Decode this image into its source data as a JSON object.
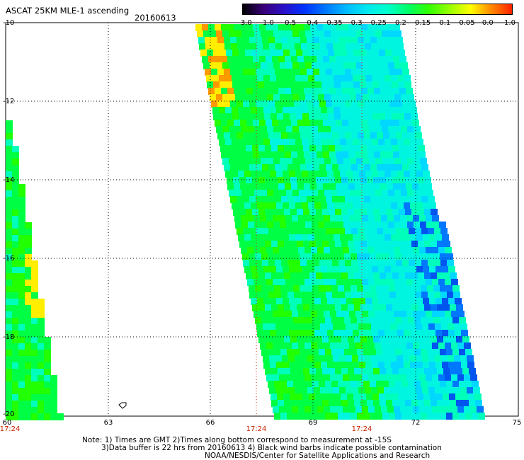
{
  "title": "ASCAT 25KM MLE-1 ascending",
  "date": "20160613",
  "colorbar": {
    "labels": [
      "-3.0",
      "-1.0",
      "-0.5",
      "-0.4",
      "-0.35",
      "-0.3",
      "-0.25",
      "-0.2",
      "-0.15",
      "-0.1",
      "-0.05",
      "0.0",
      "1.0"
    ],
    "colors": [
      "#000000",
      "#3a007a",
      "#2a10c8",
      "#0033ff",
      "#0077ff",
      "#00bbff",
      "#00e8f0",
      "#00ffcc",
      "#00ff66",
      "#33ff00",
      "#99ff00",
      "#ffff00",
      "#ff8800",
      "#ff2200"
    ]
  },
  "axes": {
    "lat_ticks": [
      "-10",
      "-12",
      "-14",
      "-16",
      "-18",
      "-20"
    ],
    "lon_ticks": [
      "60",
      "63",
      "66",
      "69",
      "72",
      "75"
    ],
    "time_labels": [
      "17:24",
      "17:24",
      "17:24"
    ],
    "grid": true
  },
  "swaths": {
    "dominant_colors": [
      "#00ff44",
      "#22ff00",
      "#00ffbb",
      "#00f5e0",
      "#00d8ff"
    ],
    "warm_colors": [
      "#ffee00",
      "#ff9900"
    ],
    "cold_colors": [
      "#0077ff",
      "#0055ee"
    ]
  },
  "notes": {
    "line1": "Note: 1) Times are GMT 2)Times along bottom correspond to measurement at -15S",
    "line2": "3)Data buffer is 22 hrs from 20160613 4) Black wind barbs indicate possible contamination",
    "line3": "NOAA/NESDIS/Center for Satellite Applications and Research"
  }
}
